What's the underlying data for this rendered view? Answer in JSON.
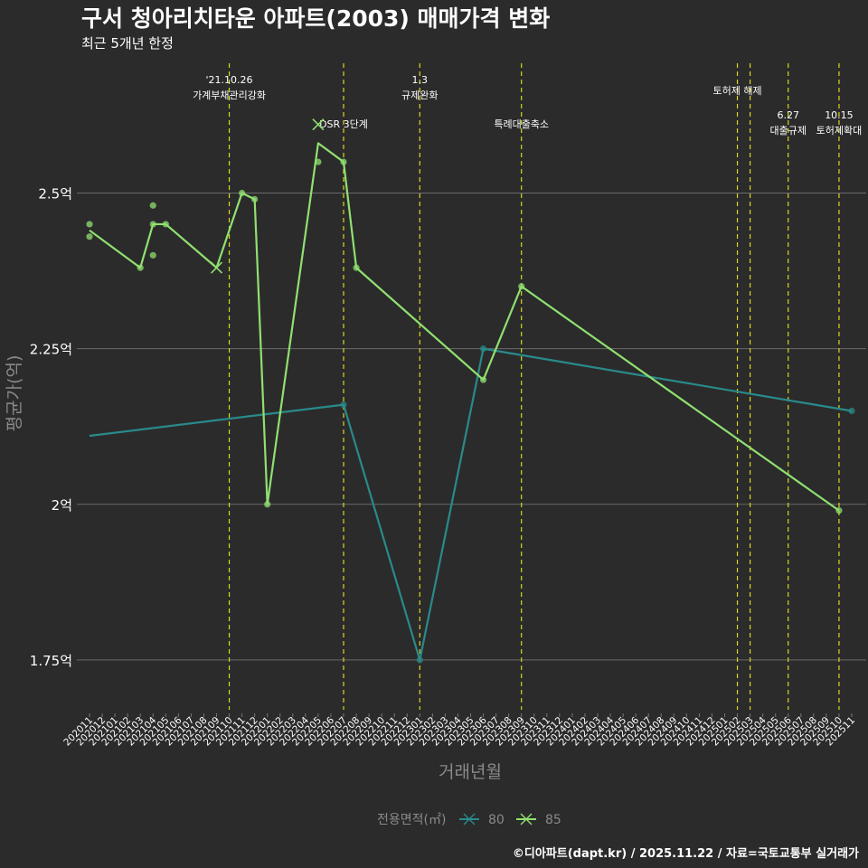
{
  "chart_data": {
    "type": "line",
    "title": "구서 청아리치타운 아파트(2003) 매매가격 변화",
    "subtitle": "최근 5개년 한정",
    "xlabel": "거래년월",
    "ylabel": "평균가(억)",
    "ylim": [
      1.67,
      2.72
    ],
    "yticks": [
      1.75,
      2.0,
      2.25,
      2.5
    ],
    "ytick_labels": [
      "1.75억",
      "2억",
      "2.25억",
      "2.5억"
    ],
    "categories": [
      "202011",
      "202012",
      "202101",
      "202102",
      "202103",
      "202104",
      "202105",
      "202106",
      "202107",
      "202108",
      "202109",
      "202110",
      "202111",
      "202112",
      "202201",
      "202202",
      "202203",
      "202204",
      "202205",
      "202206",
      "202207",
      "202208",
      "202209",
      "202210",
      "202211",
      "202212",
      "202301",
      "202302",
      "202303",
      "202304",
      "202305",
      "202306",
      "202307",
      "202308",
      "202309",
      "202310",
      "202311",
      "202312",
      "202401",
      "202402",
      "202403",
      "202404",
      "202405",
      "202406",
      "202407",
      "202408",
      "202409",
      "202410",
      "202411",
      "202412",
      "202501",
      "202502",
      "202503",
      "202504",
      "202505",
      "202506",
      "202507",
      "202508",
      "202509",
      "202510",
      "202511"
    ],
    "legend": {
      "title": "전용면적(㎡)",
      "position": "bottom"
    },
    "series": [
      {
        "name": "80",
        "color": "#2a8a8a",
        "line": [
          [
            "202011",
            2.11
          ],
          [
            "202207",
            2.16
          ],
          [
            "202301",
            1.75
          ],
          [
            "202306",
            2.25
          ],
          [
            "202511",
            2.15
          ]
        ],
        "points": [
          [
            "202207",
            2.16
          ],
          [
            "202301",
            1.75
          ],
          [
            "202306",
            2.25
          ],
          [
            "202511",
            2.15
          ]
        ],
        "crosses": []
      },
      {
        "name": "85",
        "color": "#90e070",
        "line": [
          [
            "202011",
            2.44
          ],
          [
            "202103",
            2.38
          ],
          [
            "202104",
            2.45
          ],
          [
            "202105",
            2.45
          ],
          [
            "202109",
            2.38
          ],
          [
            "202111",
            2.5
          ],
          [
            "202112",
            2.49
          ],
          [
            "202201",
            2.0
          ],
          [
            "202205",
            2.58
          ],
          [
            "202207",
            2.55
          ],
          [
            "202208",
            2.38
          ],
          [
            "202306",
            2.2
          ],
          [
            "202309",
            2.35
          ],
          [
            "202510",
            1.99
          ]
        ],
        "points": [
          [
            "202011",
            2.45
          ],
          [
            "202011",
            2.43
          ],
          [
            "202103",
            2.38
          ],
          [
            "202104",
            2.48
          ],
          [
            "202104",
            2.45
          ],
          [
            "202104",
            2.4
          ],
          [
            "202105",
            2.45
          ],
          [
            "202111",
            2.5
          ],
          [
            "202112",
            2.49
          ],
          [
            "202201",
            2.0
          ],
          [
            "202205",
            2.55
          ],
          [
            "202207",
            2.55
          ],
          [
            "202208",
            2.38
          ],
          [
            "202306",
            2.2
          ],
          [
            "202309",
            2.35
          ],
          [
            "202510",
            1.99
          ]
        ],
        "crosses": [
          [
            "202109",
            2.38
          ],
          [
            "202205",
            2.61
          ]
        ]
      }
    ],
    "events": [
      {
        "month": "202110",
        "lines": [
          "'21.10.26",
          "가계부채관리강화"
        ],
        "row": 1
      },
      {
        "month": "202207",
        "lines": [
          "DSR 3단계"
        ],
        "row": 2
      },
      {
        "month": "202301",
        "lines": [
          "1.3",
          "규제완화"
        ],
        "row": 1
      },
      {
        "month": "202309",
        "lines": [
          "특례대출축소"
        ],
        "row": 2
      },
      {
        "month": "202502",
        "lines": [
          "토허제 해제"
        ],
        "row": 0
      },
      {
        "month": "202503",
        "lines": [],
        "row": 0
      },
      {
        "month": "202506",
        "lines": [
          "6.27",
          "대출규제"
        ],
        "row": 2
      },
      {
        "month": "202510",
        "lines": [
          "10.15",
          "토허제확대"
        ],
        "row": 2
      }
    ]
  },
  "footer": "©디아파트(dapt.kr) / 2025.11.22 / 자료=국토교통부 실거래가",
  "colors": {
    "background": "#2b2b2b",
    "grid": "#6a6a6a",
    "event_line": "#d8d820",
    "axis_text": "#ffffff",
    "axis_title": "#8a8a8a"
  }
}
